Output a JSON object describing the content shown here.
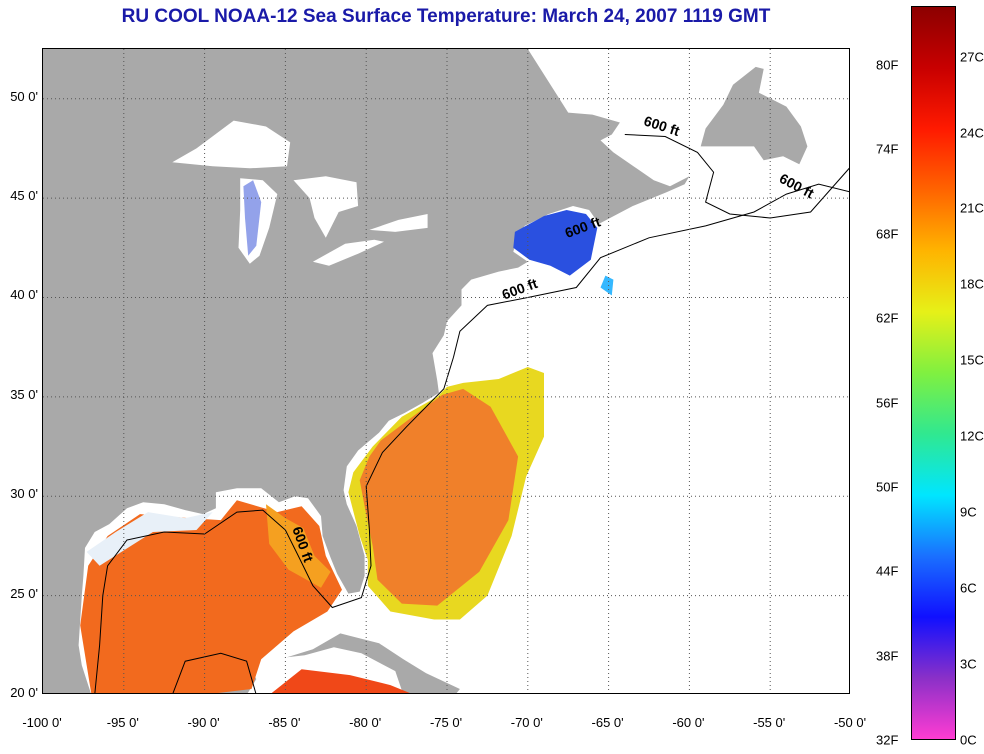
{
  "title": "RU COOL  NOAA-12  Sea Surface Temperature:  March 24, 2007 1119 GMT",
  "map": {
    "lon_range": [
      -100,
      -50
    ],
    "lat_range": [
      20,
      52.5
    ],
    "grid": true,
    "lat_ticks": [
      {
        "value": 50,
        "label": "50 0'"
      },
      {
        "value": 45,
        "label": "45 0'"
      },
      {
        "value": 40,
        "label": "40 0'"
      },
      {
        "value": 35,
        "label": "35 0'"
      },
      {
        "value": 30,
        "label": "30 0'"
      },
      {
        "value": 25,
        "label": "25 0'"
      },
      {
        "value": 20,
        "label": "20 0'"
      }
    ],
    "lon_ticks": [
      {
        "value": -100,
        "label": "-100 0'"
      },
      {
        "value": -95,
        "label": "-95 0'"
      },
      {
        "value": -90,
        "label": "-90 0'"
      },
      {
        "value": -85,
        "label": "-85 0'"
      },
      {
        "value": -80,
        "label": "-80 0'"
      },
      {
        "value": -75,
        "label": "-75 0'"
      },
      {
        "value": -70,
        "label": "-70 0'"
      },
      {
        "value": -65,
        "label": "-65 0'"
      },
      {
        "value": -60,
        "label": "-60 0'"
      },
      {
        "value": -55,
        "label": "-55 0'"
      },
      {
        "value": -50,
        "label": "-50 0'"
      }
    ],
    "contour_labels": [
      {
        "text": "600 ft",
        "lon": -61.8,
        "lat": 48.4,
        "angle": 18
      },
      {
        "text": "600 ft",
        "lon": -53.5,
        "lat": 45.4,
        "angle": 28
      },
      {
        "text": "600 ft",
        "lon": -66.5,
        "lat": 43.3,
        "angle": -20
      },
      {
        "text": "600 ft",
        "lon": -70.4,
        "lat": 40.2,
        "angle": -20
      },
      {
        "text": "600 ft",
        "lon": -84.2,
        "lat": 27.5,
        "angle": 70
      }
    ],
    "colors": {
      "land": "#a9a9a9",
      "no_data": "#ffffff",
      "gulf_of_maine": "#2a50e0",
      "gulf_stream": "#f0802a",
      "shelf_water": "#e8d820",
      "contour": "#000000"
    }
  },
  "colorbar": {
    "range_c": [
      0,
      29
    ],
    "fahrenheit_labels": [
      {
        "value": 80,
        "label": "80F"
      },
      {
        "value": 74,
        "label": "74F"
      },
      {
        "value": 68,
        "label": "68F"
      },
      {
        "value": 62,
        "label": "62F"
      },
      {
        "value": 56,
        "label": "56F"
      },
      {
        "value": 50,
        "label": "50F"
      },
      {
        "value": 44,
        "label": "44F"
      },
      {
        "value": 38,
        "label": "38F"
      },
      {
        "value": 32,
        "label": "32F"
      }
    ],
    "celsius_labels": [
      {
        "value": 27,
        "label": "27C"
      },
      {
        "value": 24,
        "label": "24C"
      },
      {
        "value": 21,
        "label": "21C"
      },
      {
        "value": 18,
        "label": "18C"
      },
      {
        "value": 15,
        "label": "15C"
      },
      {
        "value": 12,
        "label": "12C"
      },
      {
        "value": 9,
        "label": "9C"
      },
      {
        "value": 6,
        "label": "6C"
      },
      {
        "value": 3,
        "label": "3C"
      },
      {
        "value": 0,
        "label": "0C"
      }
    ],
    "gradient_colors": [
      "#ff3cd2",
      "#8a30c8",
      "#1010ff",
      "#1a70ff",
      "#00e6ff",
      "#30e890",
      "#80f040",
      "#e6f018",
      "#ffb400",
      "#ff6400",
      "#ff1a00",
      "#c80000",
      "#8c0000"
    ]
  }
}
